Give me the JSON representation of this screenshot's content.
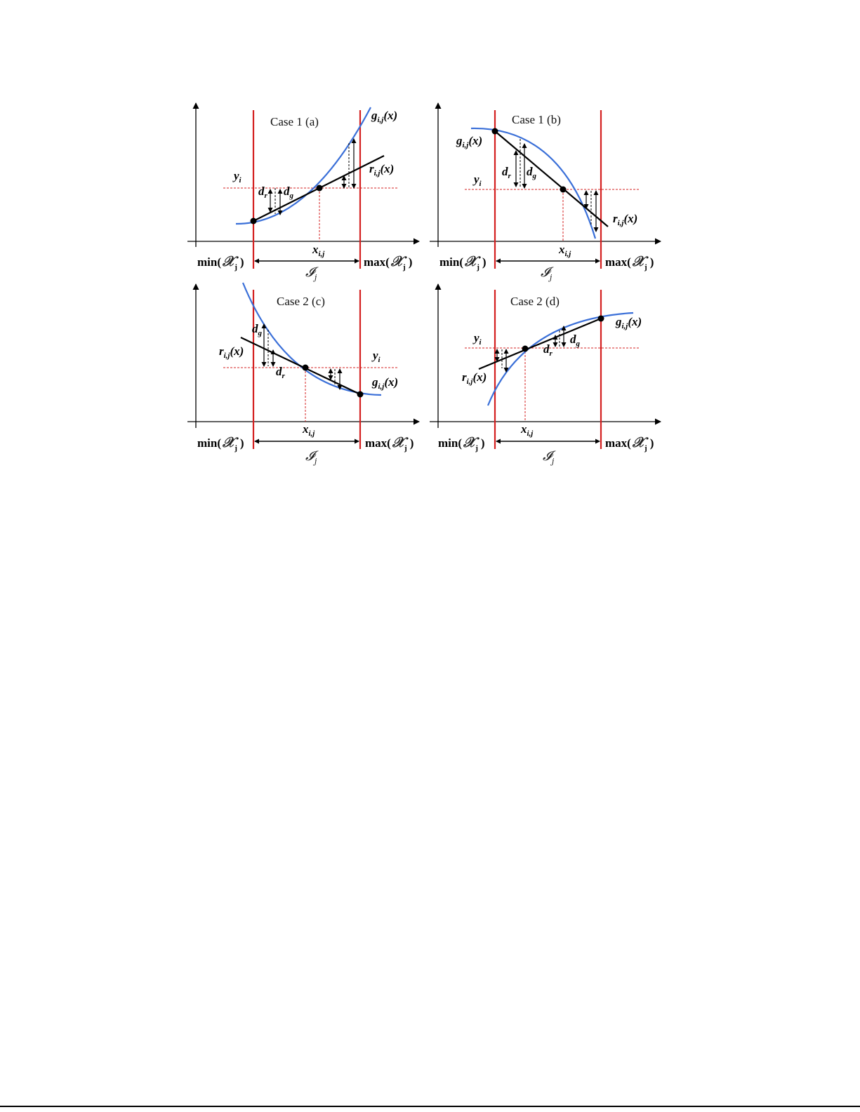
{
  "panels": [
    {
      "id": "a",
      "title": "Case 1  (a)",
      "g_label": "g",
      "g_sub": "i,j",
      "g_arg": "(x)",
      "r_label": "r",
      "r_sub": "i,j",
      "r_arg": "(x)",
      "y_label": "y",
      "y_sub": "i",
      "x_label": "x",
      "x_sub": "i,j",
      "dr_label": "d",
      "dr_sub": "r",
      "dg_label": "d",
      "dg_sub": "g",
      "min_label": "min(",
      "max_label": "max(",
      "close_paren": ")",
      "set_X": "𝒳",
      "set_X_sub": "j",
      "interval_I": "𝓘",
      "interval_sub": "j"
    },
    {
      "id": "b",
      "title": "Case 1  (b)",
      "g_label": "g",
      "g_sub": "i,j",
      "g_arg": "(x)",
      "r_label": "r",
      "r_sub": "i,j",
      "r_arg": "(x)",
      "y_label": "y",
      "y_sub": "i",
      "x_label": "x",
      "x_sub": "i,j",
      "dr_label": "d",
      "dr_sub": "r",
      "dg_label": "d",
      "dg_sub": "g",
      "min_label": "min(",
      "max_label": "max(",
      "close_paren": ")",
      "set_X": "𝒳",
      "set_X_sub": "j",
      "interval_I": "𝓘",
      "interval_sub": "j"
    },
    {
      "id": "c",
      "title": "Case 2  (c)",
      "g_label": "g",
      "g_sub": "i,j",
      "g_arg": "(x)",
      "r_label": "r",
      "r_sub": "i,j",
      "r_arg": "(x)",
      "y_label": "y",
      "y_sub": "i",
      "x_label": "x",
      "x_sub": "i,j",
      "dr_label": "d",
      "dr_sub": "r",
      "dg_label": "d",
      "dg_sub": "g",
      "min_label": "min(",
      "max_label": "max(",
      "close_paren": ")",
      "set_X": "𝒳",
      "set_X_sub": "j",
      "interval_I": "𝓘",
      "interval_sub": "j"
    },
    {
      "id": "d",
      "title": "Case 2  (d)",
      "g_label": "g",
      "g_sub": "i,j",
      "g_arg": "(x)",
      "r_label": "r",
      "r_sub": "i,j",
      "r_arg": "(x)",
      "y_label": "y",
      "y_sub": "i",
      "x_label": "x",
      "x_sub": "i,j",
      "dr_label": "d",
      "dr_sub": "r",
      "dg_label": "d",
      "dg_sub": "g",
      "min_label": "min(",
      "max_label": "max(",
      "close_paren": ")",
      "set_X": "𝒳",
      "set_X_sub": "j",
      "interval_I": "𝓘",
      "interval_sub": "j"
    }
  ],
  "colors": {
    "curve": "#3a6fd8",
    "bound": "#d42020",
    "guide": "#d42020",
    "line": "#000000"
  }
}
